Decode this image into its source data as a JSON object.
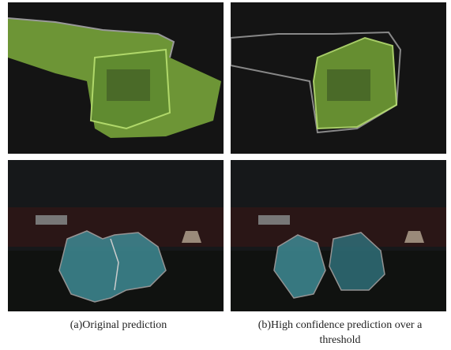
{
  "captions": {
    "a": "(a)Original prediction",
    "b": "(b)High confidence prediction over a threshold"
  }
}
